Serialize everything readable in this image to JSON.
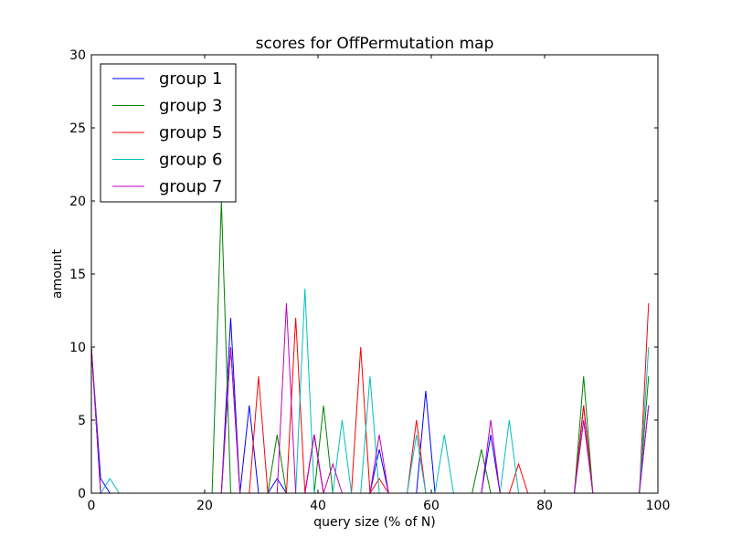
{
  "chart_data": {
    "type": "line",
    "title": "scores for OffPermutation map",
    "xlabel": "query size (% of N)",
    "ylabel": "amount",
    "xlim": [
      0,
      100
    ],
    "ylim": [
      0,
      30
    ],
    "xticks": [
      "0",
      "20",
      "40",
      "60",
      "80",
      "100"
    ],
    "yticks": [
      "0",
      "5",
      "10",
      "15",
      "20",
      "25",
      "30"
    ],
    "legend_position": "top-left",
    "grid": false,
    "x": [
      0,
      1.64,
      3.28,
      4.92,
      6.56,
      8.2,
      9.84,
      11.48,
      13.11,
      14.75,
      16.39,
      18.03,
      19.67,
      21.31,
      22.95,
      24.59,
      26.23,
      27.87,
      29.51,
      31.15,
      32.79,
      34.43,
      36.07,
      37.7,
      39.34,
      40.98,
      42.62,
      44.26,
      45.9,
      47.54,
      49.18,
      50.82,
      52.46,
      54.1,
      55.74,
      57.38,
      59.02,
      60.66,
      62.3,
      63.93,
      65.57,
      67.21,
      68.85,
      70.49,
      72.13,
      73.77,
      75.41,
      77.05,
      78.69,
      80.33,
      81.97,
      83.61,
      85.25,
      86.89,
      88.52,
      90.16,
      91.8,
      93.44,
      95.08,
      96.72,
      98.36
    ],
    "series": [
      {
        "name": "group 1",
        "color": "#0000ff",
        "values": [
          10,
          1,
          0,
          0,
          0,
          0,
          0,
          0,
          0,
          0,
          0,
          0,
          0,
          0,
          0,
          12,
          0,
          6,
          0,
          0,
          1,
          0,
          0,
          0,
          4,
          0,
          0,
          0,
          0,
          0,
          0,
          3,
          0,
          0,
          0,
          0,
          7,
          0,
          0,
          0,
          0,
          0,
          0,
          4,
          0,
          0,
          0,
          0,
          0,
          0,
          0,
          0,
          0,
          6,
          0,
          0,
          0,
          0,
          0,
          0,
          6
        ]
      },
      {
        "name": "group 3",
        "color": "#008000",
        "values": [
          10,
          0,
          0,
          0,
          0,
          0,
          0,
          0,
          0,
          0,
          0,
          0,
          0,
          0,
          20,
          0,
          0,
          0,
          0,
          0,
          4,
          0,
          0,
          0,
          0,
          6,
          0,
          0,
          0,
          0,
          0,
          0,
          0,
          0,
          0,
          0,
          0,
          0,
          0,
          0,
          0,
          0,
          3,
          0,
          0,
          0,
          0,
          0,
          0,
          0,
          0,
          0,
          0,
          8,
          0,
          0,
          0,
          0,
          0,
          0,
          8
        ]
      },
      {
        "name": "group 5",
        "color": "#ff0000",
        "values": [
          10,
          0,
          0,
          0,
          0,
          0,
          0,
          0,
          0,
          0,
          0,
          0,
          0,
          0,
          0,
          10,
          0,
          0,
          8,
          0,
          0,
          0,
          12,
          0,
          4,
          0,
          0,
          0,
          0,
          10,
          0,
          1,
          0,
          0,
          0,
          5,
          0,
          0,
          0,
          0,
          0,
          0,
          0,
          0,
          0,
          0,
          2,
          0,
          0,
          0,
          0,
          0,
          0,
          6,
          0,
          0,
          0,
          0,
          0,
          0,
          13
        ]
      },
      {
        "name": "group 6",
        "color": "#00bfbf",
        "values": [
          10,
          0,
          1,
          0,
          0,
          0,
          0,
          0,
          0,
          0,
          0,
          0,
          0,
          0,
          0,
          10,
          0,
          0,
          0,
          0,
          0,
          0,
          0,
          14,
          0,
          0,
          0,
          5,
          0,
          0,
          8,
          0,
          0,
          0,
          0,
          4,
          0,
          0,
          4,
          0,
          0,
          0,
          0,
          0,
          0,
          5,
          0,
          0,
          0,
          0,
          0,
          0,
          0,
          5,
          0,
          0,
          0,
          0,
          0,
          0,
          10
        ]
      },
      {
        "name": "group 7",
        "color": "#bf00bf",
        "values": [
          10,
          0,
          0,
          0,
          0,
          0,
          0,
          0,
          0,
          0,
          0,
          0,
          0,
          0,
          0,
          10,
          0,
          0,
          0,
          0,
          0,
          13,
          0,
          0,
          4,
          0,
          2,
          0,
          0,
          0,
          0,
          4,
          0,
          0,
          0,
          0,
          0,
          0,
          0,
          0,
          0,
          0,
          0,
          5,
          0,
          0,
          0,
          0,
          0,
          0,
          0,
          0,
          0,
          5,
          0,
          0,
          0,
          0,
          0,
          0,
          6
        ]
      }
    ]
  }
}
